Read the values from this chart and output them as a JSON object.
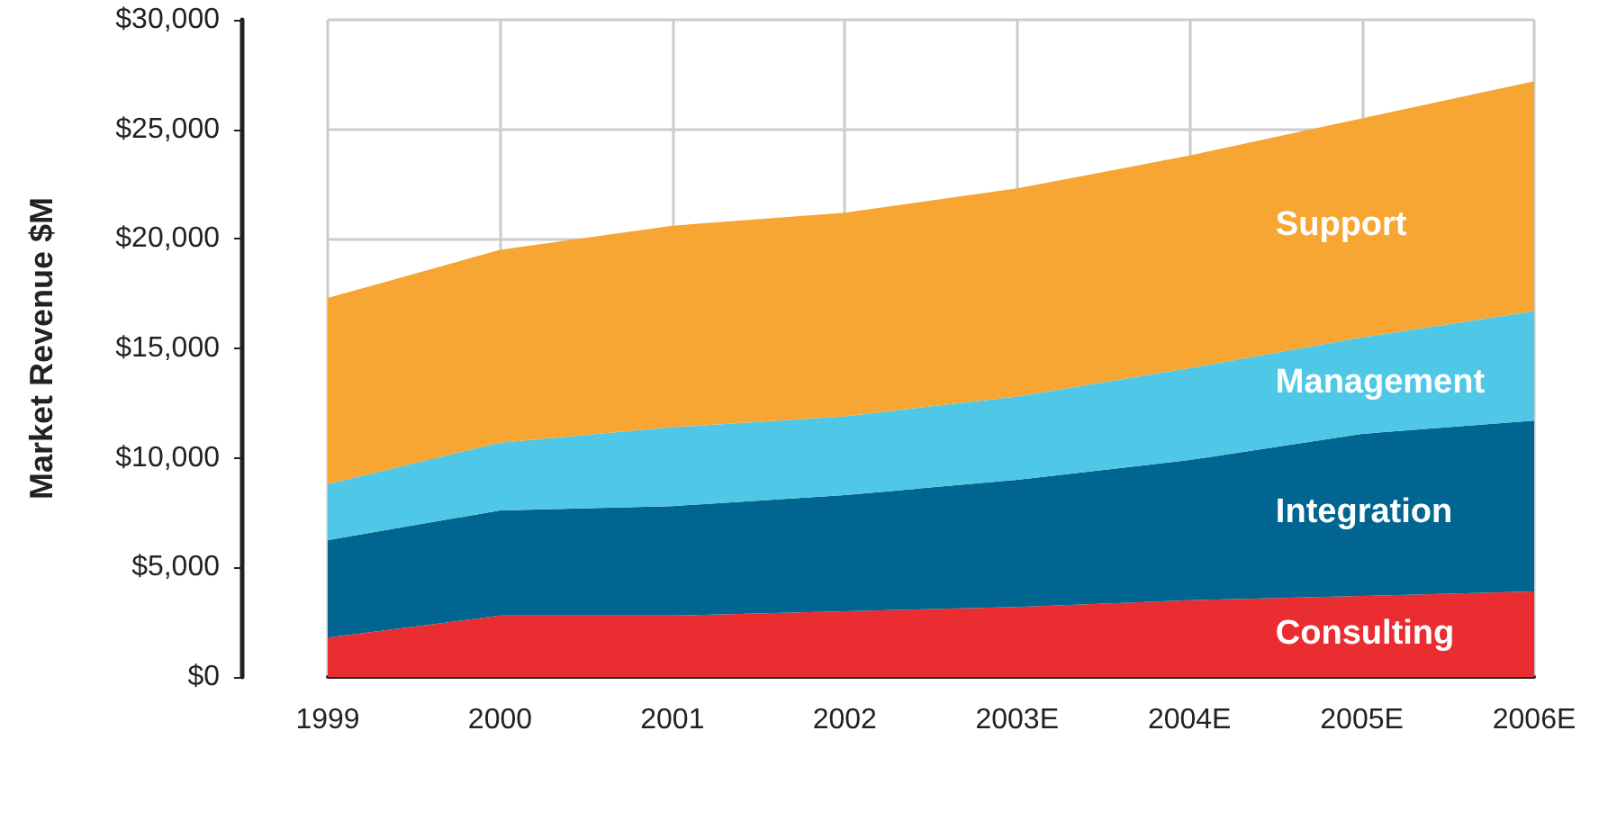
{
  "chart_data": {
    "type": "area",
    "stacked": true,
    "ylabel": "Market Revenue $M",
    "categories": [
      "1999",
      "2000",
      "2001",
      "2002",
      "2003E",
      "2004E",
      "2005E",
      "2006E"
    ],
    "series": [
      {
        "name": "Consulting",
        "color": "#e92d30",
        "values": [
          1800,
          2800,
          2800,
          3000,
          3200,
          3500,
          3700,
          3900
        ]
      },
      {
        "name": "Integration",
        "color": "#006691",
        "values": [
          4450,
          4800,
          5000,
          5300,
          5800,
          6400,
          7400,
          7800
        ]
      },
      {
        "name": "Management",
        "color": "#4fc7e6",
        "values": [
          2550,
          3100,
          3600,
          3600,
          3800,
          4200,
          4400,
          5000
        ]
      },
      {
        "name": "Support",
        "color": "#f7a533",
        "values": [
          8500,
          8800,
          9200,
          9300,
          9500,
          9700,
          10000,
          10500
        ]
      }
    ],
    "ylim": [
      0,
      30000
    ],
    "yticks": [
      {
        "value": 0,
        "label": "$0"
      },
      {
        "value": 5000,
        "label": "$5,000"
      },
      {
        "value": 10000,
        "label": "$10,000"
      },
      {
        "value": 15000,
        "label": "$15,000"
      },
      {
        "value": 20000,
        "label": "$20,000"
      },
      {
        "value": 25000,
        "label": "$25,000"
      },
      {
        "value": 30000,
        "label": "$30,000"
      }
    ],
    "grid": true,
    "legend": false
  }
}
